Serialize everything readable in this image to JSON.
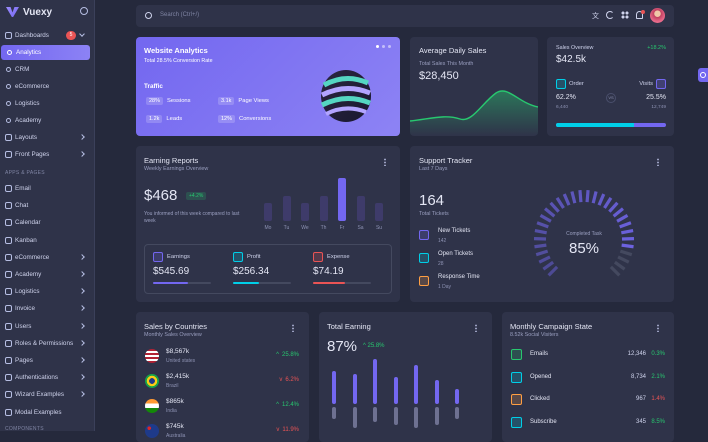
{
  "brand": {
    "name": "Vuexy"
  },
  "sidebar": {
    "dashboards": "Dashboards",
    "dashboards_badge": "5",
    "items": [
      "Analytics",
      "CRM",
      "eCommerce",
      "Logistics",
      "Academy"
    ],
    "layouts": "Layouts",
    "front_pages": "Front Pages",
    "section_apps": "APPS & PAGES",
    "apps": [
      "Email",
      "Chat",
      "Calendar",
      "Kanban",
      "eCommerce",
      "Academy",
      "Logistics",
      "Invoice",
      "Users",
      "Roles & Permissions",
      "Pages",
      "Authentications",
      "Wizard Examples",
      "Modal Examples"
    ],
    "section_components": "COMPONENTS"
  },
  "search": {
    "placeholder": "Search (Ctrl+/)"
  },
  "website_analytics": {
    "title": "Website Analytics",
    "subtitle": "Total 28.5% Conversion Rate",
    "traffic": "Traffic",
    "stats": [
      {
        "value": "28%",
        "label": "Sessions"
      },
      {
        "value": "3.1k",
        "label": "Page Views"
      },
      {
        "value": "1.2k",
        "label": "Leads"
      },
      {
        "value": "12%",
        "label": "Conversions"
      }
    ]
  },
  "avg_sales": {
    "title": "Average Daily Sales",
    "subtitle": "Total Sales This Month",
    "value": "$28,450"
  },
  "sales_overview": {
    "title": "Sales Overview",
    "change": "+18.2%",
    "value": "$42.5k",
    "order_label": "Order",
    "order_pct": "62.2%",
    "order_count": "6,440",
    "vs": "VS",
    "visits_label": "Visits",
    "visits_pct": "25.5%",
    "visits_count": "12,749",
    "order_fraction": 0.71
  },
  "earning_reports": {
    "title": "Earning Reports",
    "subtitle": "Weekly Earnings Overview",
    "value": "$468",
    "change": "+4.2%",
    "note": "You informed of this week compared to last week",
    "days": [
      "Mo",
      "Tu",
      "We",
      "Th",
      "Fr",
      "Sa",
      "Su"
    ],
    "bars": [
      0.42,
      0.57,
      0.42,
      0.57,
      1.0,
      0.57,
      0.42
    ],
    "metrics": [
      {
        "label": "Earnings",
        "value": "$545.69",
        "color": "#7367f0",
        "fill": 0.6
      },
      {
        "label": "Profit",
        "value": "$256.34",
        "color": "#00cfe8",
        "fill": 0.45
      },
      {
        "label": "Expense",
        "value": "$74.19",
        "color": "#ea5455",
        "fill": 0.55
      }
    ]
  },
  "support": {
    "title": "Support Tracker",
    "subtitle": "Last 7 Days",
    "count": "164",
    "count_label": "Total Tickets",
    "items": [
      {
        "label": "New Tickets",
        "value": "142",
        "color": "#7367f0"
      },
      {
        "label": "Open Tickets",
        "value": "28",
        "color": "#00cfe8"
      },
      {
        "label": "Response Time",
        "value": "1 Day",
        "color": "#ff9f43"
      }
    ],
    "gauge_label": "Completed Task",
    "gauge_value": "85%",
    "gauge_fraction": 0.85
  },
  "countries": {
    "title": "Sales by Countries",
    "subtitle": "Monthly Sales Overview",
    "rows": [
      {
        "amount": "$8,567k",
        "country": "United states",
        "change": "25.8%",
        "up": true
      },
      {
        "amount": "$2,415k",
        "country": "Brazil",
        "change": "6.2%",
        "up": false
      },
      {
        "amount": "$865k",
        "country": "India",
        "change": "12.4%",
        "up": true
      },
      {
        "amount": "$745k",
        "country": "Australia",
        "change": "11.9%",
        "up": false
      }
    ]
  },
  "total_earning": {
    "title": "Total Earning",
    "value": "87%",
    "change": "25.8%",
    "up": [
      0.55,
      0.5,
      0.75,
      0.45,
      0.65,
      0.4,
      0.25
    ],
    "down": [
      0.2,
      0.35,
      0.25,
      0.3,
      0.35,
      0.3,
      0.2
    ]
  },
  "campaign": {
    "title": "Monthly Campaign State",
    "subtitle": "8.52k Social Visiters",
    "rows": [
      {
        "label": "Emails",
        "count": "12,346",
        "pct": "0.3%",
        "up": true,
        "color": "#28c76f"
      },
      {
        "label": "Opened",
        "count": "8,734",
        "pct": "2.1%",
        "up": true,
        "color": "#00cfe8"
      },
      {
        "label": "Clicked",
        "count": "967",
        "pct": "1.4%",
        "up": false,
        "color": "#ff9f43"
      },
      {
        "label": "Subscribe",
        "count": "345",
        "pct": "8.5%",
        "up": true,
        "color": "#00cfe8"
      }
    ]
  },
  "colors": {
    "primary": "#7367f0",
    "success": "#28c76f",
    "danger": "#ea5455",
    "info": "#00cfe8",
    "warning": "#ff9f43"
  }
}
